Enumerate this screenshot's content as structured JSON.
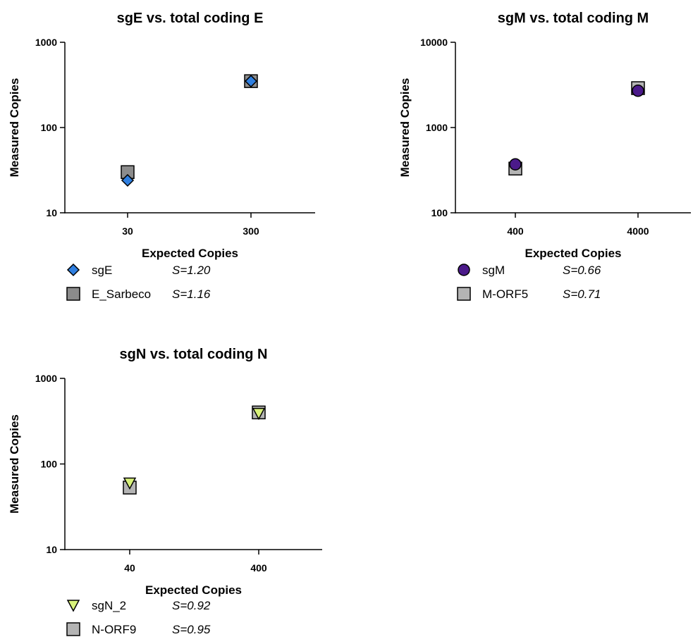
{
  "chart_data": [
    {
      "type": "scatter",
      "title": "sgE vs. total coding E",
      "xlabel": "Expected Copies",
      "ylabel": "Measured Copies",
      "x_scale": "log",
      "y_scale": "log",
      "ylim": [
        10,
        1000
      ],
      "xticks": [
        "30",
        "300"
      ],
      "yticks": [
        "10",
        "100",
        "1000"
      ],
      "grid": false,
      "legend_position": "bottom-left",
      "series": [
        {
          "name": "sgE",
          "marker": "diamond",
          "color": "#2F7FE0",
          "slope_label": "S=1.20",
          "x": [
            30,
            300
          ],
          "y": [
            24,
            350
          ]
        },
        {
          "name": "E_Sarbeco",
          "marker": "square",
          "color": "#8C8C8C",
          "slope_label": "S=1.16",
          "x": [
            30,
            300
          ],
          "y": [
            30,
            350
          ]
        }
      ]
    },
    {
      "type": "scatter",
      "title": "sgM vs. total coding M",
      "xlabel": "Expected Copies",
      "ylabel": "Measured Copies",
      "x_scale": "log",
      "y_scale": "log",
      "ylim": [
        100,
        10000
      ],
      "xticks": [
        "400",
        "4000"
      ],
      "yticks": [
        "100",
        "1000",
        "10000"
      ],
      "grid": false,
      "legend_position": "bottom-left",
      "series": [
        {
          "name": "sgM",
          "marker": "circle",
          "color": "#4B1A8A",
          "slope_label": "S=0.66",
          "x": [
            400,
            4000
          ],
          "y": [
            370,
            2700
          ]
        },
        {
          "name": "M-ORF5",
          "marker": "square",
          "color": "#B4B4B4",
          "slope_label": "S=0.71",
          "x": [
            400,
            4000
          ],
          "y": [
            330,
            2900
          ]
        }
      ]
    },
    {
      "type": "scatter",
      "title": "sgN vs. total coding N",
      "xlabel": "Expected Copies",
      "ylabel": "Measured Copies",
      "x_scale": "log",
      "y_scale": "log",
      "ylim": [
        10,
        1000
      ],
      "xticks": [
        "40",
        "400"
      ],
      "yticks": [
        "10",
        "100",
        "1000"
      ],
      "grid": false,
      "legend_position": "bottom-left",
      "series": [
        {
          "name": "sgN_2",
          "marker": "triangle-down",
          "color": "#D8F27A",
          "slope_label": "S=0.92",
          "x": [
            40,
            400
          ],
          "y": [
            60,
            390
          ]
        },
        {
          "name": "N-ORF9",
          "marker": "square",
          "color": "#B4B4B4",
          "slope_label": "S=0.95",
          "x": [
            40,
            400
          ],
          "y": [
            53,
            400
          ]
        }
      ]
    }
  ]
}
